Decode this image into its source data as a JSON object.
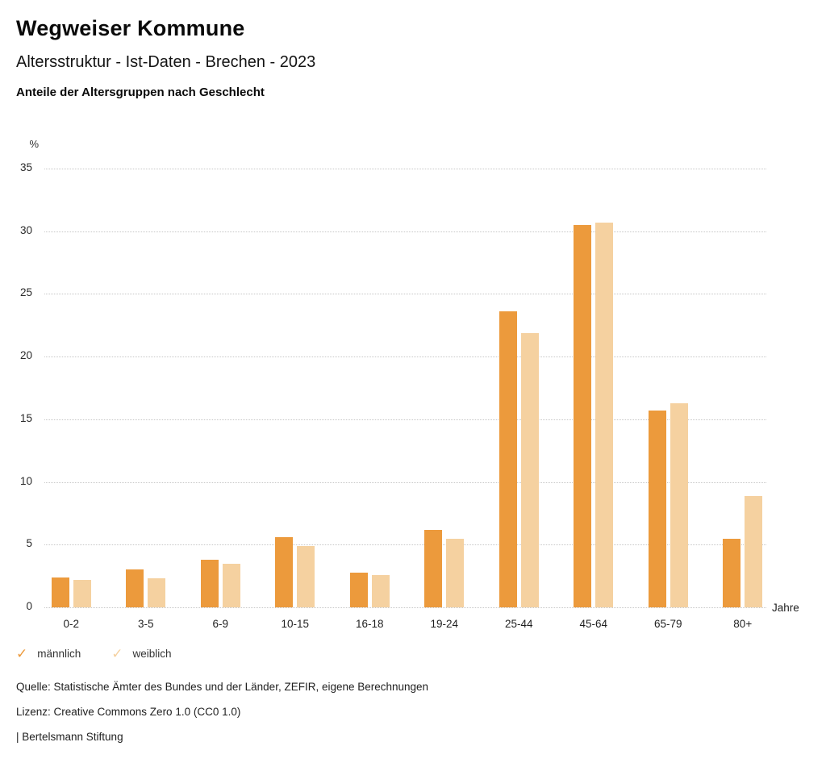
{
  "header": {
    "title": "Wegweiser Kommune",
    "subtitle": "Altersstruktur - Ist-Daten - Brechen - 2023",
    "caption": "Anteile der Altersgruppen nach Geschlecht"
  },
  "chart_data": {
    "type": "bar",
    "title": "Anteile der Altersgruppen nach Geschlecht",
    "ylabel": "%",
    "xlabel": "Jahre",
    "ylim": [
      0,
      35
    ],
    "yticks": [
      35,
      30,
      25,
      20,
      15,
      10,
      5,
      0
    ],
    "grid": "horizontal-dotted",
    "legend_position": "bottom-left",
    "categories": [
      "0-2",
      "3-5",
      "6-9",
      "10-15",
      "16-18",
      "19-24",
      "25-44",
      "45-64",
      "65-79",
      "80+"
    ],
    "series": [
      {
        "name": "männlich",
        "color": "#EC9A3C",
        "values": [
          2.4,
          3.0,
          3.8,
          5.6,
          2.8,
          6.2,
          23.6,
          30.5,
          15.7,
          5.5
        ]
      },
      {
        "name": "weiblich",
        "color": "#F5D1A0",
        "values": [
          2.2,
          2.3,
          3.5,
          4.9,
          2.6,
          5.5,
          21.9,
          30.7,
          16.3,
          8.9
        ]
      }
    ]
  },
  "legend": {
    "check_glyph": "✓"
  },
  "footer": {
    "source": "Quelle: Statistische Ämter des Bundes und der Länder, ZEFIR, eigene Berechnungen",
    "license": "Lizenz: Creative Commons Zero 1.0 (CC0 1.0)",
    "attribution": "| Bertelsmann Stiftung"
  },
  "colors": {
    "gridline": "#c6c6c6",
    "text": "#1f1f1f"
  }
}
